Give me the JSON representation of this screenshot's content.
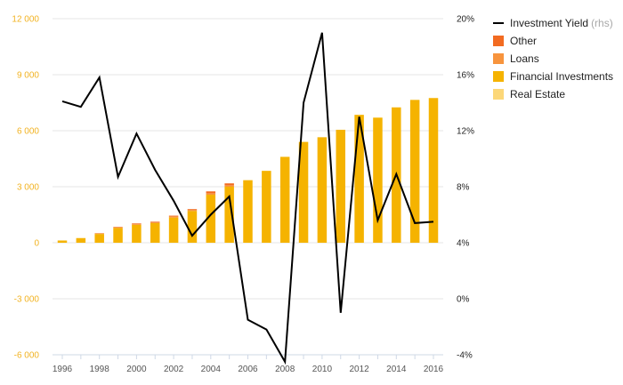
{
  "chart_data": {
    "type": "bar",
    "x": [
      1996,
      1997,
      1998,
      1999,
      2000,
      2001,
      2002,
      2003,
      2004,
      2005,
      2006,
      2007,
      2008,
      2009,
      2010,
      2011,
      2012,
      2013,
      2014,
      2015,
      2016
    ],
    "x_tick_labels": [
      "1996",
      "1998",
      "2000",
      "2002",
      "2004",
      "2006",
      "2008",
      "2010",
      "2012",
      "2014",
      "2016"
    ],
    "y_left": {
      "lim": [
        -6000,
        12000
      ],
      "ticks": [
        "-6 000",
        "-3 000",
        "0",
        "3 000",
        "6 000",
        "9 000",
        "12 000"
      ],
      "tick_values": [
        -6000,
        -3000,
        0,
        3000,
        6000,
        9000,
        12000
      ]
    },
    "y_right": {
      "lim": [
        -4,
        20
      ],
      "ticks": [
        "-4%",
        "0%",
        "4%",
        "8%",
        "12%",
        "16%",
        "20%"
      ],
      "tick_values": [
        -4,
        0,
        4,
        8,
        12,
        16,
        20
      ]
    },
    "grid": true,
    "legend_position": "right",
    "series": [
      {
        "name": "Real Estate",
        "kind": "bar",
        "axis": "left",
        "color": "#fcd778",
        "values": [
          0,
          0,
          0,
          0,
          0,
          0,
          0,
          0,
          0,
          0,
          0,
          0,
          0,
          0,
          0,
          0,
          0,
          0,
          0,
          0,
          0
        ]
      },
      {
        "name": "Financial Investments",
        "kind": "bar",
        "axis": "left",
        "color": "#f5b300",
        "values": [
          120,
          250,
          470,
          790,
          960,
          1050,
          1350,
          1700,
          2570,
          3000,
          3350,
          3850,
          4600,
          5400,
          5650,
          6050,
          6850,
          6700,
          7250,
          7650,
          7750
        ]
      },
      {
        "name": "Loans",
        "kind": "bar",
        "axis": "left",
        "color": "#f7943d",
        "values": [
          0,
          0,
          30,
          40,
          50,
          50,
          60,
          60,
          80,
          80,
          0,
          0,
          0,
          0,
          0,
          0,
          0,
          0,
          0,
          0,
          0
        ]
      },
      {
        "name": "Other",
        "kind": "bar",
        "axis": "left",
        "color": "#f26b21",
        "values": [
          0,
          0,
          10,
          20,
          30,
          30,
          40,
          40,
          100,
          100,
          0,
          0,
          0,
          0,
          0,
          0,
          0,
          0,
          0,
          0,
          0
        ]
      },
      {
        "name": "Investment Yield",
        "kind": "line",
        "axis": "right",
        "color": "#000000",
        "values": [
          14.1,
          13.7,
          15.8,
          8.7,
          11.8,
          9.2,
          7.0,
          4.5,
          6.0,
          7.3,
          -1.5,
          -2.2,
          -4.5,
          14.0,
          19.0,
          -1.0,
          13.0,
          5.6,
          8.9,
          5.4,
          5.5
        ]
      }
    ],
    "legend": [
      {
        "label": "Investment Yield",
        "suffix": "(rhs)",
        "kind": "line",
        "color": "#000000"
      },
      {
        "label": "Other",
        "kind": "box",
        "color": "#f26b21"
      },
      {
        "label": "Loans",
        "kind": "box",
        "color": "#f7943d"
      },
      {
        "label": "Financial Investments",
        "kind": "box",
        "color": "#f5b300"
      },
      {
        "label": "Real Estate",
        "kind": "box",
        "color": "#fcd778"
      }
    ]
  }
}
